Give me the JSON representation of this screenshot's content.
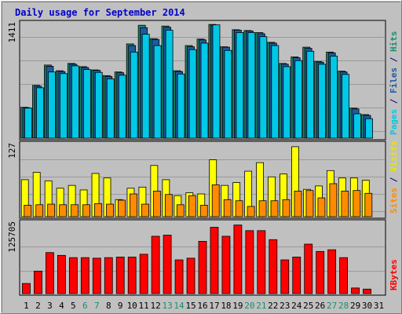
{
  "chart_data": {
    "type": "bar",
    "title": "Daily usage for September 2014",
    "categories": [
      "1",
      "2",
      "3",
      "4",
      "5",
      "6",
      "7",
      "8",
      "9",
      "10",
      "11",
      "12",
      "13",
      "14",
      "15",
      "16",
      "17",
      "18",
      "19",
      "20",
      "21",
      "22",
      "23",
      "24",
      "25",
      "26",
      "27",
      "28",
      "29",
      "30",
      "31"
    ],
    "weekend_days": [
      6,
      7,
      13,
      14,
      20,
      21,
      27,
      28
    ],
    "panels": [
      {
        "id": "top",
        "ymax_label": "1411",
        "ymax": 1411,
        "right_label_parts": [
          {
            "text": "Pages",
            "color": "#00c8e6"
          },
          {
            "text": " / ",
            "color": "#000080"
          },
          {
            "text": "Files",
            "color": "#1e5aa0"
          },
          {
            "text": " / ",
            "color": "#000080"
          },
          {
            "text": "Hits",
            "color": "#1e8c6e"
          }
        ],
        "series": [
          {
            "name": "Hits",
            "color": "#1e8c6e",
            "values": [
              380,
              650,
              900,
              830,
              920,
              880,
              840,
              770,
              815,
              1160,
              1390,
              1225,
              1380,
              830,
              1140,
              1220,
              1400,
              1125,
              1335,
              1325,
              1300,
              1180,
              920,
              1000,
              1120,
              945,
              1060,
              825,
              370,
              290,
              0
            ]
          },
          {
            "name": "Files",
            "color": "#1e5aa0",
            "values": [
              375,
              640,
              885,
              820,
              910,
              870,
              835,
              760,
              805,
              1140,
              1360,
              1215,
              1365,
              820,
              1125,
              1210,
              1390,
              1120,
              1330,
              1320,
              1285,
              1170,
              910,
              990,
              1105,
              935,
              1050,
              815,
              360,
              280,
              0
            ]
          },
          {
            "name": "Pages",
            "color": "#00c8e6",
            "values": [
              370,
              620,
              815,
              795,
              890,
              845,
              810,
              730,
              775,
              1060,
              1280,
              1140,
              1330,
              790,
              1090,
              1170,
              1395,
              1080,
              1300,
              1300,
              1250,
              1140,
              880,
              955,
              1070,
              910,
              1010,
              785,
              300,
              240,
              0
            ]
          }
        ]
      },
      {
        "id": "middle",
        "ymax_label": "127",
        "ymax": 127,
        "right_label_parts": [
          {
            "text": "Sites",
            "color": "#ff8c00"
          },
          {
            "text": " / ",
            "color": "#000080"
          },
          {
            "text": "Visits",
            "color": "#e6e600"
          }
        ],
        "series": [
          {
            "name": "Visits",
            "color": "#ffff00",
            "values": [
              65,
              78,
              63,
              50,
              55,
              47,
              76,
              68,
              30,
              50,
              52,
              90,
              65,
              37,
              42,
              40,
              100,
              55,
              60,
              80,
              95,
              70,
              75,
              123,
              48,
              54,
              81,
              68,
              68,
              64,
              0
            ]
          },
          {
            "name": "Sites",
            "color": "#ff8c00",
            "values": [
              20,
              21,
              22,
              21,
              21,
              21,
              23,
              22,
              29,
              40,
              22,
              45,
              39,
              21,
              37,
              20,
              56,
              30,
              28,
              18,
              28,
              28,
              30,
              45,
              46,
              33,
              58,
              45,
              46,
              41,
              0
            ]
          }
        ]
      },
      {
        "id": "bottom",
        "ymax_label": "125705",
        "ymax": 125705,
        "right_label_parts": [
          {
            "text": "KBytes",
            "color": "#ff0000"
          }
        ],
        "series": [
          {
            "name": "KBytes",
            "color": "#ff0000",
            "values": [
              18000,
              40000,
              73000,
              68000,
              64000,
              64000,
              63000,
              64000,
              65000,
              65000,
              70000,
              102000,
              104000,
              60000,
              63000,
              93000,
              118000,
              102000,
              122000,
              112000,
              112000,
              96000,
              60000,
              65000,
              88000,
              75000,
              78000,
              64000,
              10000,
              8000,
              0
            ]
          }
        ]
      }
    ]
  }
}
